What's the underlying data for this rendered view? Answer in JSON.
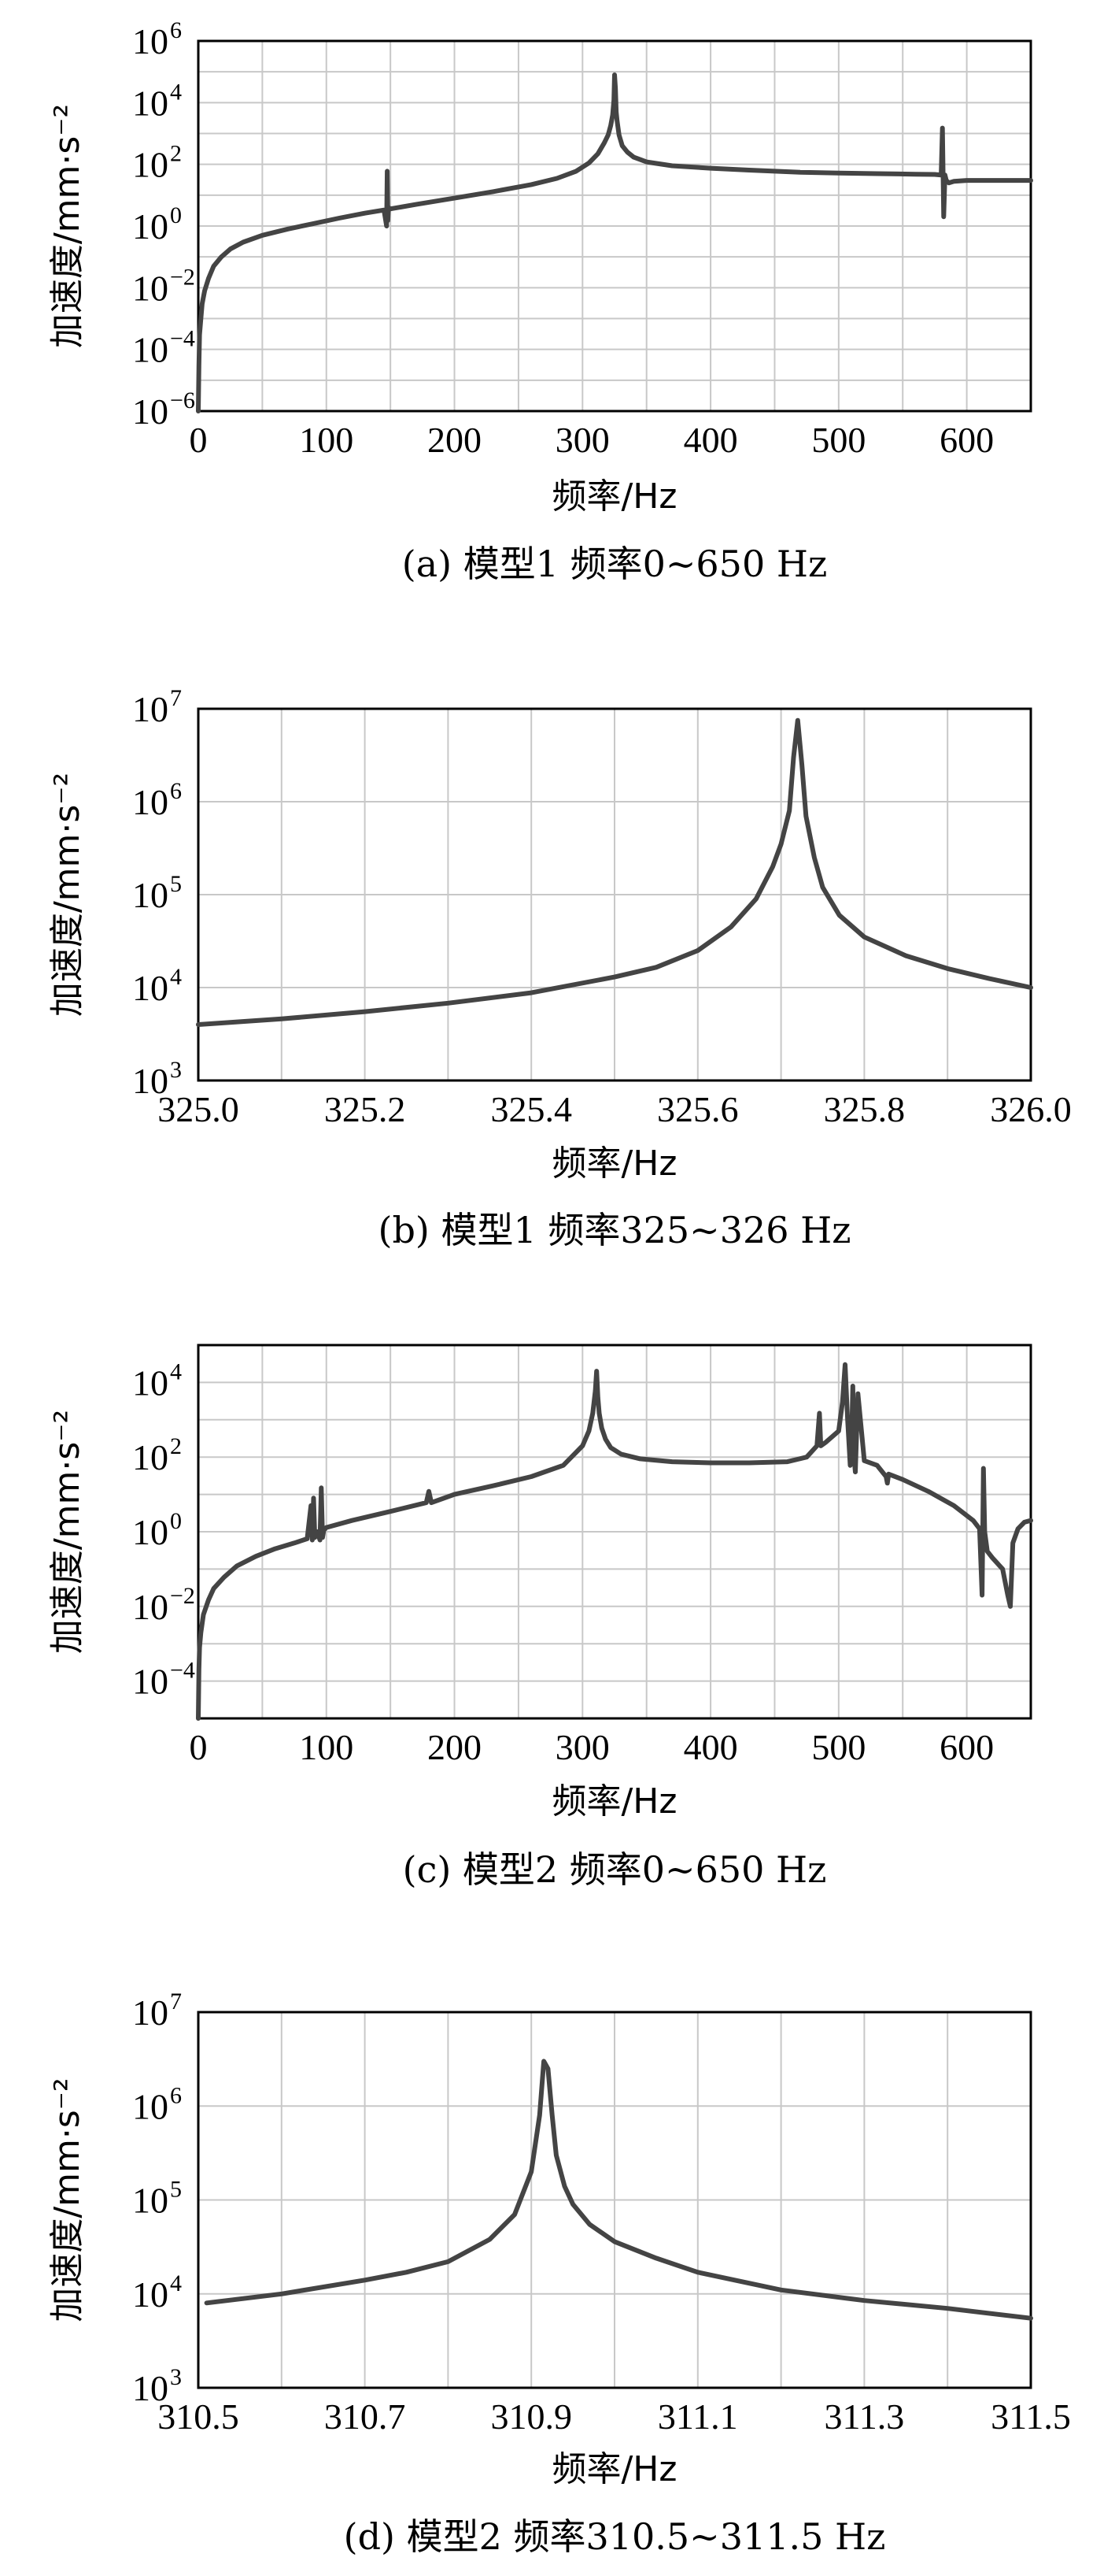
{
  "chart_data": [
    {
      "type": "line",
      "xlabel": "频率/Hz",
      "ylabel": "加速度/mm·s⁻²",
      "caption": "(a) 模型1 频率0~650 Hz",
      "yscale": "log",
      "xlim": [
        0,
        650
      ],
      "ylim_exp": [
        -6,
        6
      ],
      "x_ticks": [
        0,
        100,
        200,
        300,
        400,
        500,
        600
      ],
      "x_tick_labels": [
        "0",
        "100",
        "200",
        "300",
        "400",
        "500",
        "600"
      ],
      "y_tick_exps": [
        -6,
        -4,
        -2,
        0,
        2,
        4,
        6
      ],
      "y_tick_labels": [
        "10",
        "10",
        "10",
        "10",
        "10",
        "10",
        "10"
      ],
      "y_tick_sups": [
        "−6",
        "−4",
        "−2",
        "0",
        "2",
        "4",
        "6"
      ],
      "x_minor_grid_step": 50,
      "y_minor_grid_exp_step": 1,
      "series": [
        {
          "x": [
            0,
            0.5,
            1,
            2,
            3,
            5,
            8,
            12,
            18,
            25,
            35,
            50,
            70,
            90,
            110,
            130,
            145,
            147,
            147.5,
            148,
            148.5,
            149,
            150,
            170,
            200,
            230,
            260,
            280,
            295,
            305,
            312,
            317,
            320,
            322,
            323.5,
            324.5,
            325,
            325.7,
            326.3,
            327,
            328.5,
            331,
            335,
            340,
            350,
            370,
            400,
            430,
            470,
            500,
            530,
            560,
            575,
            580,
            581,
            582,
            583,
            584,
            586,
            590,
            600,
            620,
            650
          ],
          "y": [
            1e-06,
            3e-05,
            0.0003,
            0.001,
            0.003,
            0.008,
            0.02,
            0.05,
            0.1,
            0.18,
            0.3,
            0.5,
            0.8,
            1.2,
            1.8,
            2.6,
            3.3,
            1.0,
            60,
            1.5,
            4,
            3.5,
            3.6,
            5,
            8,
            13,
            22,
            35,
            60,
            110,
            220,
            500,
            900,
            1800,
            4000,
            12000,
            80000,
            30000,
            5000,
            2500,
            900,
            400,
            250,
            170,
            120,
            90,
            75,
            65,
            55,
            52,
            50,
            48,
            47,
            45,
            1500,
            2,
            45,
            30,
            25,
            28,
            30,
            30,
            30
          ]
        }
      ]
    },
    {
      "type": "line",
      "xlabel": "频率/Hz",
      "ylabel": "加速度/mm·s⁻²",
      "caption": "(b) 模型1 频率325~326 Hz",
      "yscale": "log",
      "xlim": [
        325.0,
        326.0
      ],
      "ylim_exp": [
        3,
        7
      ],
      "x_ticks": [
        325.0,
        325.2,
        325.4,
        325.6,
        325.8,
        326.0
      ],
      "x_tick_labels": [
        "325.0",
        "325.2",
        "325.4",
        "325.6",
        "325.8",
        "326.0"
      ],
      "y_tick_exps": [
        3,
        4,
        5,
        6,
        7
      ],
      "y_tick_labels": [
        "10",
        "10",
        "10",
        "10",
        "10"
      ],
      "y_tick_sups": [
        "3",
        "4",
        "5",
        "6",
        "7"
      ],
      "x_minor_grid_step": 0.1,
      "y_minor_grid_exp_step": 1,
      "series": [
        {
          "x": [
            325.0,
            325.1,
            325.2,
            325.3,
            325.4,
            325.5,
            325.55,
            325.6,
            325.64,
            325.67,
            325.69,
            325.7,
            325.71,
            325.715,
            325.72,
            325.725,
            325.73,
            325.74,
            325.75,
            325.77,
            325.8,
            325.85,
            325.9,
            325.95,
            326.0
          ],
          "y": [
            4000,
            4600,
            5500,
            6800,
            8800,
            13000,
            16500,
            25000,
            45000,
            90000,
            200000,
            350000,
            800000,
            3000000,
            7500000,
            2500000,
            700000,
            250000,
            120000,
            60000,
            35000,
            22000,
            16000,
            12500,
            10000
          ]
        }
      ]
    },
    {
      "type": "line",
      "xlabel": "频率/Hz",
      "ylabel": "加速度/mm·s⁻²",
      "caption": "(c) 模型2 频率0~650 Hz",
      "yscale": "log",
      "xlim": [
        0,
        650
      ],
      "ylim_exp": [
        -5,
        5
      ],
      "x_ticks": [
        0,
        100,
        200,
        300,
        400,
        500,
        600
      ],
      "x_tick_labels": [
        "0",
        "100",
        "200",
        "300",
        "400",
        "500",
        "600"
      ],
      "y_tick_exps": [
        -4,
        -2,
        0,
        2,
        4
      ],
      "y_tick_labels": [
        "10",
        "10",
        "10",
        "10",
        "10"
      ],
      "y_tick_sups": [
        "−4",
        "−2",
        "0",
        "2",
        "4"
      ],
      "x_minor_grid_step": 50,
      "y_minor_grid_exp_step": 1,
      "series": [
        {
          "x": [
            0,
            0.5,
            1,
            2,
            4,
            8,
            12,
            20,
            30,
            45,
            60,
            75,
            85,
            88,
            89,
            90,
            91,
            93,
            95,
            96,
            97,
            98,
            100,
            120,
            150,
            178,
            180,
            182,
            200,
            230,
            260,
            285,
            300,
            305,
            308,
            310,
            311,
            312,
            313,
            315,
            318,
            322,
            330,
            345,
            370,
            400,
            430,
            460,
            475,
            483,
            485,
            486,
            490,
            500,
            503,
            505,
            507,
            509,
            510,
            511,
            512,
            513,
            515,
            520,
            530,
            537,
            538,
            539,
            550,
            570,
            590,
            605,
            610,
            612,
            613,
            614,
            616,
            620,
            628,
            632,
            634,
            636,
            640,
            645,
            650
          ],
          "y": [
            1e-05,
            0.0002,
            0.0008,
            0.002,
            0.006,
            0.015,
            0.03,
            0.06,
            0.12,
            0.22,
            0.35,
            0.5,
            0.65,
            5,
            0.6,
            8,
            0.7,
            1.0,
            0.6,
            15,
            0.7,
            1.1,
            1.3,
            2,
            3.5,
            6,
            12,
            6,
            10,
            17,
            30,
            60,
            200,
            500,
            1500,
            6000,
            20000,
            4000,
            1500,
            600,
            300,
            180,
            120,
            90,
            75,
            70,
            70,
            75,
            100,
            200,
            1500,
            200,
            250,
            500,
            3000,
            30000,
            1000,
            60,
            200,
            8000,
            100,
            40,
            5000,
            80,
            60,
            30,
            20,
            35,
            25,
            12,
            5,
            2,
            1.2,
            0.02,
            50,
            1,
            0.3,
            0.2,
            0.1,
            0.02,
            0.01,
            0.5,
            1.2,
            1.8,
            2.0
          ]
        }
      ]
    },
    {
      "type": "line",
      "xlabel": "频率/Hz",
      "ylabel": "加速度/mm·s⁻²",
      "caption": "(d) 模型2 频率310.5~311.5 Hz",
      "yscale": "log",
      "xlim": [
        310.5,
        311.5
      ],
      "ylim_exp": [
        3,
        7
      ],
      "x_ticks": [
        310.5,
        310.7,
        310.9,
        311.1,
        311.3,
        311.5
      ],
      "x_tick_labels": [
        "310.5",
        "310.7",
        "310.9",
        "311.1",
        "311.3",
        "311.5"
      ],
      "y_tick_exps": [
        3,
        4,
        5,
        6,
        7
      ],
      "y_tick_labels": [
        "10",
        "10",
        "10",
        "10",
        "10"
      ],
      "y_tick_sups": [
        "3",
        "4",
        "5",
        "6",
        "7"
      ],
      "x_minor_grid_step": 0.1,
      "y_minor_grid_exp_step": 1,
      "series": [
        {
          "x": [
            310.51,
            310.6,
            310.7,
            310.75,
            310.8,
            310.85,
            310.88,
            310.9,
            310.91,
            310.915,
            310.92,
            310.925,
            310.93,
            310.94,
            310.95,
            310.97,
            311.0,
            311.05,
            311.1,
            311.2,
            311.3,
            311.4,
            311.5
          ],
          "y": [
            8000,
            10000,
            14000,
            17000,
            22000,
            38000,
            70000,
            200000,
            800000,
            3000000,
            2500000,
            800000,
            300000,
            140000,
            90000,
            55000,
            36000,
            24000,
            17000,
            11000,
            8500,
            7000,
            5500
          ]
        }
      ]
    }
  ]
}
